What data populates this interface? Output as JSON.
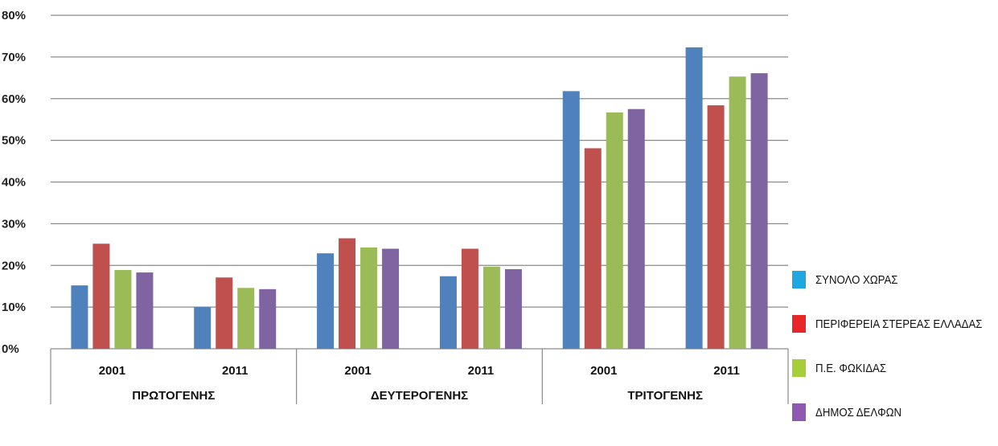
{
  "chart_data": {
    "type": "bar",
    "y_ticks": [
      "0%",
      "10%",
      "20%",
      "30%",
      "40%",
      "50%",
      "60%",
      "70%",
      "80%"
    ],
    "ylim": [
      0,
      80
    ],
    "grid": true,
    "legend_position": "bottom-right",
    "groups": [
      {
        "name": "ΠΡΩΤΟΓΕΝΗΣ",
        "years": [
          "2001",
          "2011"
        ]
      },
      {
        "name": "ΔΕΥΤΕΡΟΓΕΝΗΣ",
        "years": [
          "2001",
          "2011"
        ]
      },
      {
        "name": "ΤΡΙΤΟΓΕΝΗΣ",
        "years": [
          "2001",
          "2011"
        ]
      }
    ],
    "categories": [
      "ΠΡΩΤΟΓΕΝΗΣ 2001",
      "ΠΡΩΤΟΓΕΝΗΣ 2011",
      "ΔΕΥΤΕΡΟΓΕΝΗΣ 2001",
      "ΔΕΥΤΕΡΟΓΕΝΗΣ 2011",
      "ΤΡΙΤΟΓΕΝΗΣ 2001",
      "ΤΡΙΤΟΓΕΝΗΣ 2011"
    ],
    "series": [
      {
        "name": "ΣΥΝΟΛΟ ΧΩΡΑΣ",
        "color": "#4f81bd",
        "legend_color": "#1ea7e1",
        "values": [
          15.2,
          10.0,
          22.9,
          17.4,
          61.8,
          72.3
        ]
      },
      {
        "name": "ΠΕΡΙΦΕΡΕΙΑ ΣΤΕΡΕΑΣ ΕΛΛΑΔΑΣ",
        "color": "#c0504d",
        "legend_color": "#e8262a",
        "values": [
          25.2,
          17.1,
          26.5,
          24.0,
          48.1,
          58.4
        ]
      },
      {
        "name": "Π.Ε. ΦΩΚΙΔΑΣ",
        "color": "#9bbb59",
        "legend_color": "#a6ce39",
        "values": [
          18.9,
          14.6,
          24.3,
          19.7,
          56.7,
          65.3
        ]
      },
      {
        "name": "ΔΗΜΟΣ ΔΕΛΦΩΝ",
        "color": "#8064a2",
        "legend_color": "#8e59b0",
        "values": [
          18.3,
          14.3,
          24.0,
          19.1,
          57.5,
          66.1
        ]
      }
    ]
  }
}
